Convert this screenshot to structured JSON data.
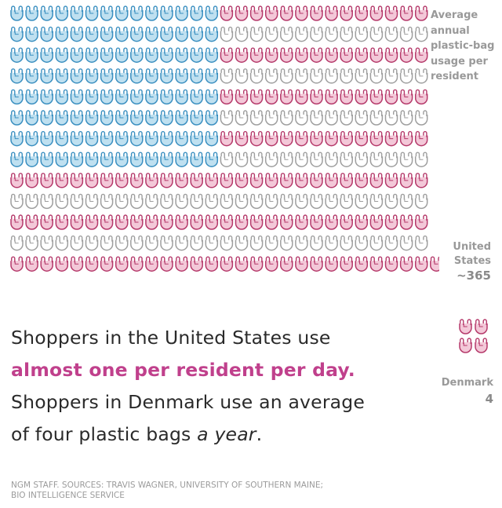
{
  "legend_label": "Average annual plastic-bag usage per resident",
  "us": {
    "country": "United States",
    "value": "~365"
  },
  "headline": {
    "line1": "Shoppers in the United States use",
    "line2": "almost one per resident per day.",
    "line3": "Shoppers in Denmark use an average",
    "line4_a": "of four plastic bags ",
    "line4_b": "a year",
    "line4_c": "."
  },
  "denmark": {
    "country": "Denmark",
    "value": "4"
  },
  "source": {
    "line1": "NGM STAFF. SOURCES: TRAVIS WAGNER, UNIVERSITY OF SOUTHERN MAINE;",
    "line2": "BIO INTELLIGENCE SERVICE"
  },
  "colors": {
    "blue_stroke": "#3a8fc0",
    "blue_fill": "#bfe0f0",
    "red_stroke": "#b5396a",
    "red_fill": "#f3c8d8",
    "white_stroke": "#9e9e9e",
    "white_fill": "#ffffff"
  },
  "chart_data": {
    "type": "pictograph",
    "title": "Average annual plastic-bag usage per resident",
    "series": [
      {
        "name": "United States",
        "values": [
          365
        ]
      },
      {
        "name": "Denmark",
        "values": [
          4
        ]
      }
    ],
    "icon": "plastic-bag-icon",
    "arrangement": "United States bags arranged as the American flag"
  }
}
